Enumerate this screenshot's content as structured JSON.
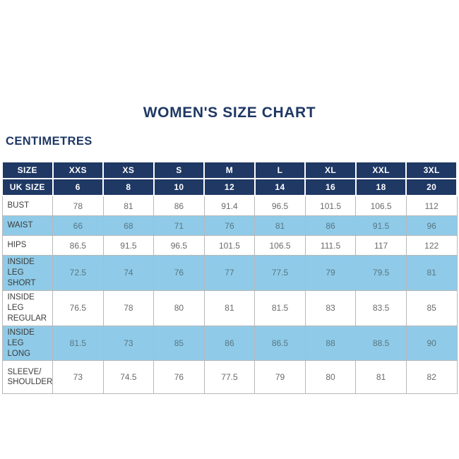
{
  "colors": {
    "navy": "#1f3864",
    "light_blue": "#8fcbe8",
    "value_text": "#6a6a6a",
    "label_text": "#3b3b3b",
    "border_gray": "#b8b8b8",
    "header_text": "#ffffff"
  },
  "chart_data": {
    "type": "table",
    "title": "WOMEN'S SIZE CHART",
    "subtitle": "CENTIMETRES",
    "columns": [
      "SIZE",
      "XXS",
      "XS",
      "S",
      "M",
      "L",
      "XL",
      "XXL",
      "3XL"
    ],
    "uk_size_row": {
      "label": "UK SIZE",
      "values": [
        "6",
        "8",
        "10",
        "12",
        "14",
        "16",
        "18",
        "20"
      ]
    },
    "rows": [
      {
        "label": "BUST",
        "highlighted": false,
        "values": [
          "78",
          "81",
          "86",
          "91.4",
          "96.5",
          "101.5",
          "106.5",
          "112"
        ]
      },
      {
        "label": "WAIST",
        "highlighted": true,
        "values": [
          "66",
          "68",
          "71",
          "76",
          "81",
          "86",
          "91.5",
          "96"
        ]
      },
      {
        "label": "HIPS",
        "highlighted": false,
        "values": [
          "86.5",
          "91.5",
          "96.5",
          "101.5",
          "106.5",
          "111.5",
          "117",
          "122"
        ]
      },
      {
        "label": "INSIDE LEG\nSHORT",
        "highlighted": true,
        "values": [
          "72.5",
          "74",
          "76",
          "77",
          "77.5",
          "79",
          "79.5",
          "81"
        ]
      },
      {
        "label": "INSIDE LEG\nREGULAR",
        "highlighted": false,
        "values": [
          "76.5",
          "78",
          "80",
          "81",
          "81.5",
          "83",
          "83.5",
          "85"
        ]
      },
      {
        "label": "INSIDE LEG\nLONG",
        "highlighted": true,
        "values": [
          "81.5",
          "73",
          "85",
          "86",
          "86.5",
          "88",
          "88.5",
          "90"
        ]
      },
      {
        "label": "SLEEVE/\nSHOULDER",
        "highlighted": false,
        "values": [
          "73",
          "74.5",
          "76",
          "77.5",
          "79",
          "80",
          "81",
          "82"
        ]
      }
    ]
  }
}
